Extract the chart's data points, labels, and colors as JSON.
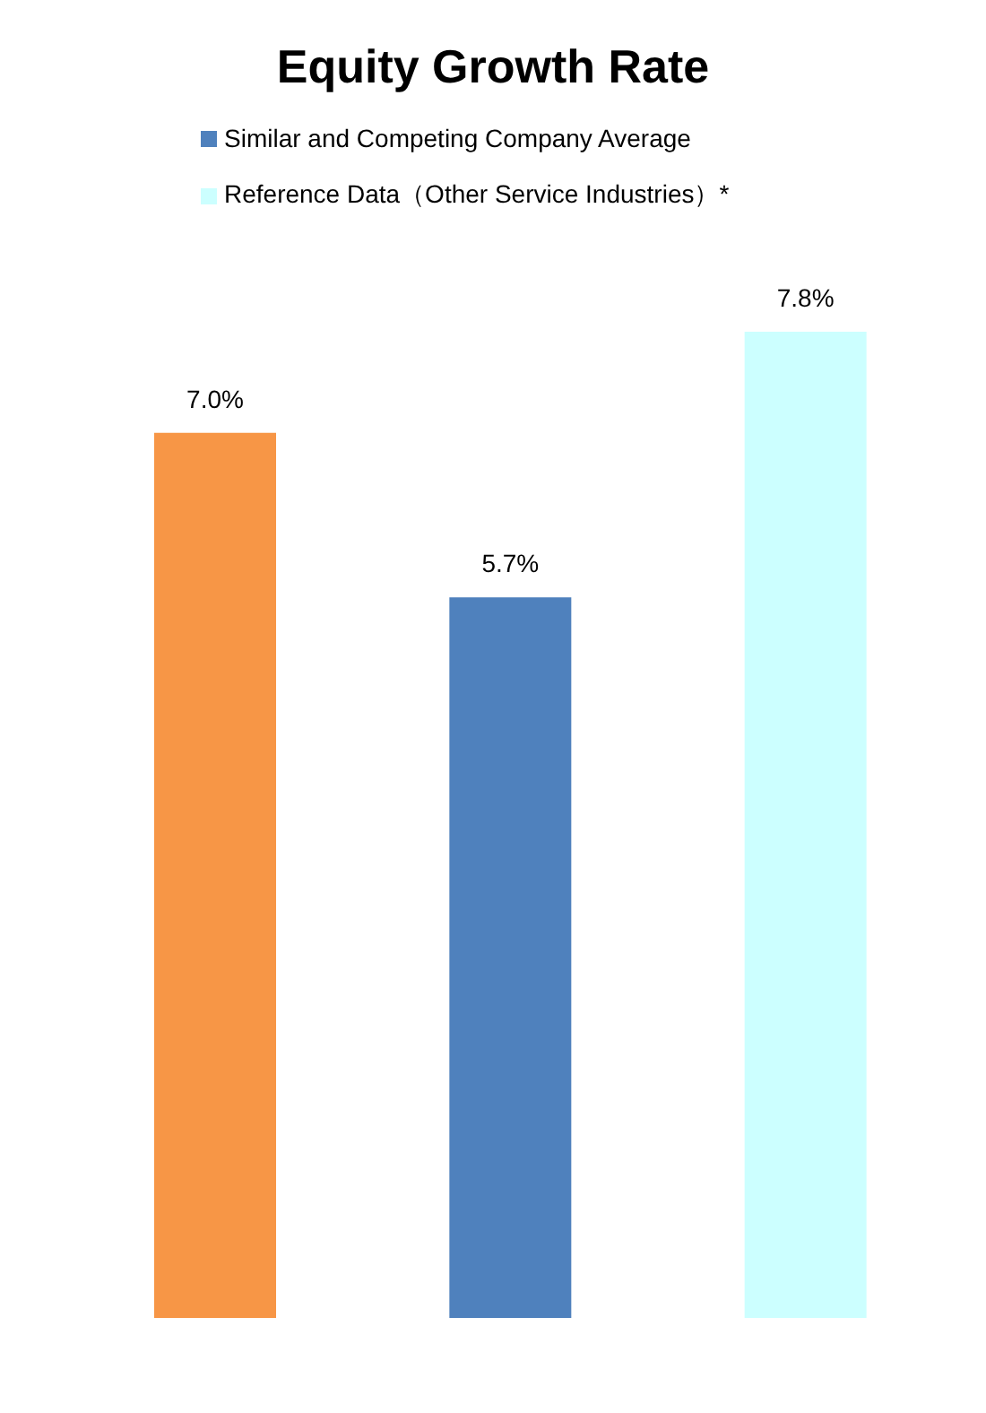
{
  "chart_data": {
    "type": "bar",
    "title": "Equity Growth Rate",
    "categories": [
      null,
      null,
      null
    ],
    "stacked": true,
    "legend": "top",
    "series": [
      {
        "color": "#f79646",
        "values": [
          7.0,
          null,
          null
        ],
        "value_labels": [
          "7.0%",
          null,
          null
        ]
      },
      {
        "name": "Similar and Competing Company Average",
        "color": "#4f81bd",
        "values": [
          null,
          5.7,
          null
        ],
        "value_labels": [
          null,
          "5.7%",
          null
        ]
      },
      {
        "name": "Reference Data（Other Service Industries）*",
        "color": "#ccffff",
        "values": [
          null,
          null,
          7.8
        ],
        "value_labels": [
          null,
          null,
          "7.8%"
        ]
      }
    ]
  }
}
